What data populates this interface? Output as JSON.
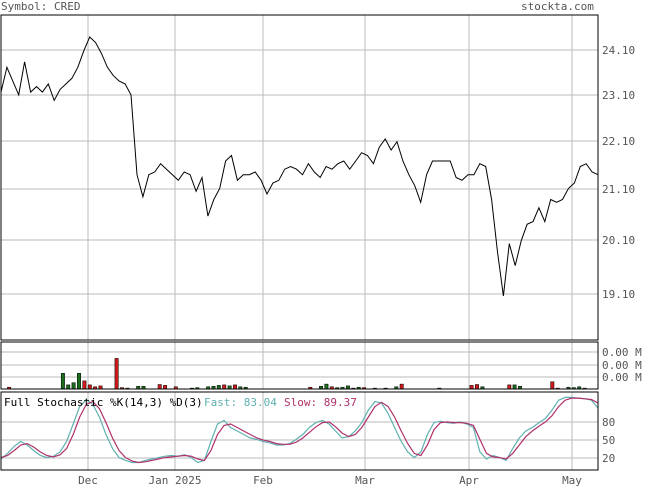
{
  "header": {
    "symbol_label": "Symbol: CRED",
    "site_label": "stockta.com"
  },
  "colors": {
    "grid": "#bbbbbb",
    "frame": "#000000",
    "price_line": "#000000",
    "volume_up": "#1a6b1a",
    "volume_down": "#cc1a1a",
    "fast_line": "#5fb0b0",
    "slow_line": "#b0306a",
    "axis_text": "#555555"
  },
  "chart_data": [
    {
      "type": "line",
      "ylim": [
        18.5,
        24.4
      ],
      "y_ticks": [
        "24.10",
        "23.10",
        "22.10",
        "21.10",
        "20.10",
        "19.10"
      ],
      "x_labels": [
        "Dec",
        "Jan 2025",
        "Feb",
        "Mar",
        "Apr",
        "May"
      ],
      "series": [
        {
          "values": [
            23.0,
            23.45,
            23.2,
            22.95,
            23.55,
            23.0,
            23.1,
            23.0,
            23.15,
            22.85,
            23.05,
            23.15,
            23.25,
            23.45,
            23.75,
            24.0,
            23.9,
            23.7,
            23.45,
            23.3,
            23.2,
            23.15,
            22.95,
            21.5,
            21.1,
            21.5,
            21.55,
            21.7,
            21.6,
            21.5,
            21.4,
            21.55,
            21.5,
            21.2,
            21.45,
            20.75,
            21.05,
            21.25,
            21.75,
            21.85,
            21.4,
            21.5,
            21.5,
            21.55,
            21.4,
            21.15,
            21.35,
            21.4,
            21.6,
            21.65,
            21.6,
            21.5,
            21.7,
            21.55,
            21.45,
            21.65,
            21.6,
            21.7,
            21.75,
            21.6,
            21.75,
            21.9,
            21.85,
            21.7,
            22.0,
            22.15,
            21.95,
            22.1,
            21.75,
            21.5,
            21.3,
            21.0,
            21.5,
            21.75,
            21.75,
            21.75,
            21.75,
            21.45,
            21.4,
            21.5,
            21.5,
            21.7,
            21.65,
            21.05,
            20.1,
            19.3,
            20.25,
            19.85,
            20.3,
            20.6,
            20.65,
            20.9,
            20.65,
            21.05,
            21.0,
            21.05,
            21.25,
            21.35,
            21.65,
            21.7,
            21.55,
            21.5
          ]
        }
      ]
    },
    {
      "type": "bar",
      "y_ticks": [
        "0.00 M",
        "0.00 M",
        "0.00 M"
      ],
      "series": [
        {
          "name": "volume",
          "values": [
            0,
            0.04,
            0,
            0,
            0,
            0,
            0,
            0,
            0,
            0,
            0,
            0.35,
            0.09,
            0.14,
            0.35,
            0.18,
            0.09,
            0.05,
            0.07,
            0,
            0,
            0.68,
            0.03,
            0.02,
            0,
            0.06,
            0.06,
            0,
            0,
            0.1,
            0.08,
            0,
            0.05,
            0,
            0,
            0.02,
            0.03,
            0,
            0.05,
            0.06,
            0.08,
            0.09,
            0.07,
            0.09,
            0.05,
            0.04,
            0,
            0,
            0,
            0,
            0,
            0,
            0,
            0,
            0,
            0,
            0,
            0.04,
            0,
            0.06,
            0.11,
            0.05,
            0.03,
            0.04,
            0.07,
            0.02,
            0.04,
            0.03,
            0,
            0.02,
            0,
            0.02,
            0,
            0.05,
            0.11,
            0,
            0,
            0,
            0,
            0,
            0,
            0.02,
            0,
            0,
            0,
            0,
            0,
            0.08,
            0.1,
            0.05,
            0,
            0,
            0,
            0,
            0.09,
            0.09,
            0.06,
            0,
            0,
            0,
            0,
            0,
            0.16,
            0.02,
            0,
            0.04,
            0.03,
            0.05,
            0.02,
            0,
            0
          ],
          "up": [
            0,
            0,
            0,
            0,
            0,
            0,
            0,
            0,
            0,
            0,
            0,
            1,
            1,
            1,
            1,
            0,
            0,
            0,
            0,
            0,
            0,
            0,
            0,
            0,
            0,
            1,
            1,
            0,
            0,
            0,
            0,
            0,
            0,
            0,
            0,
            1,
            1,
            0,
            1,
            1,
            1,
            0,
            1,
            0,
            1,
            1,
            0,
            0,
            0,
            0,
            0,
            0,
            0,
            0,
            0,
            0,
            0,
            0,
            0,
            1,
            1,
            0,
            1,
            1,
            1,
            0,
            1,
            0,
            0,
            0,
            0,
            0,
            0,
            1,
            0,
            0,
            0,
            0,
            0,
            0,
            0,
            1,
            0,
            0,
            0,
            0,
            0,
            0,
            0,
            1,
            0,
            0,
            0,
            0,
            0,
            1,
            1,
            0,
            0,
            0,
            0,
            0,
            0,
            1,
            0,
            1,
            1,
            1,
            0,
            0,
            0
          ]
        }
      ]
    },
    {
      "type": "line",
      "title": "Full Stochastic %K(14,3) %D(3)",
      "ylim": [
        0,
        100
      ],
      "y_ticks": [
        "80",
        "50",
        "20"
      ],
      "series": [
        {
          "name": "Fast",
          "label": "Fast: 83.04",
          "values": [
            10,
            18,
            28,
            35,
            30,
            22,
            15,
            12,
            14,
            20,
            35,
            60,
            85,
            95,
            88,
            70,
            45,
            25,
            12,
            8,
            5,
            5,
            8,
            10,
            12,
            14,
            15,
            14,
            16,
            12,
            5,
            8,
            35,
            60,
            65,
            55,
            50,
            45,
            40,
            38,
            35,
            33,
            30,
            30,
            32,
            38,
            45,
            55,
            62,
            65,
            60,
            50,
            40,
            42,
            50,
            62,
            80,
            92,
            90,
            75,
            55,
            35,
            20,
            12,
            20,
            45,
            62,
            64,
            62,
            61,
            63,
            60,
            55,
            20,
            10,
            15,
            12,
            8,
            25,
            40,
            50,
            55,
            62,
            68,
            80,
            94,
            98,
            98,
            97,
            96,
            94,
            83
          ]
        },
        {
          "name": "Slow",
          "label": "Slow: 89.37",
          "values": [
            12,
            15,
            22,
            30,
            32,
            27,
            20,
            15,
            13,
            16,
            25,
            45,
            70,
            88,
            92,
            82,
            62,
            40,
            22,
            12,
            7,
            5,
            6,
            8,
            10,
            12,
            13,
            14,
            15,
            14,
            10,
            8,
            22,
            45,
            58,
            60,
            55,
            50,
            45,
            40,
            37,
            35,
            32,
            31,
            31,
            34,
            40,
            48,
            56,
            62,
            63,
            56,
            47,
            42,
            45,
            55,
            70,
            85,
            91,
            85,
            70,
            50,
            32,
            18,
            15,
            30,
            52,
            62,
            63,
            62,
            62,
            61,
            58,
            38,
            18,
            13,
            12,
            10,
            18,
            30,
            42,
            50,
            57,
            63,
            72,
            85,
            94,
            97,
            97,
            96,
            95,
            90
          ]
        }
      ]
    }
  ]
}
